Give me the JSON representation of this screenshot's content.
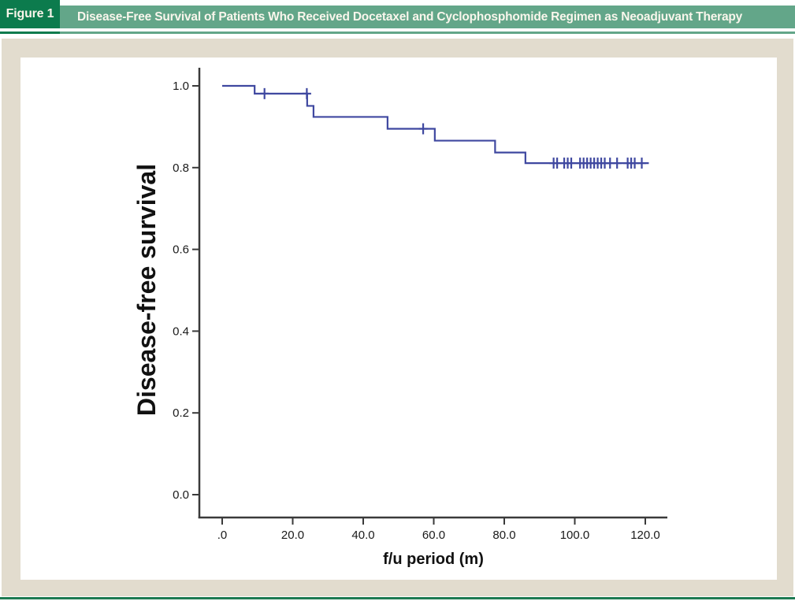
{
  "figure": {
    "label": "Figure 1",
    "title": "Disease-Free Survival of Patients Who Received Docetaxel and Cyclophosphomide Regimen as Neoadjuvant Therapy"
  },
  "colors": {
    "header_dark_green": "#0c7b4d",
    "header_sage_green": "#63a689",
    "panel_beige": "#e2dcce",
    "curve_blue": "#3f48a0",
    "axis_gray": "#3a3a3a",
    "bottom_rule_green": "#1d7a52"
  },
  "chart_data": {
    "type": "line",
    "subtype": "kaplan-meier-step",
    "title": "Disease-Free Survival of Patients Who Received Docetaxel and Cyclophosphomide Regimen as Neoadjuvant Therapy",
    "xlabel": "f/u period (m)",
    "ylabel": "Disease-free survival",
    "xlim": [
      0,
      125
    ],
    "ylim": [
      0,
      1.0
    ],
    "grid": false,
    "legend_position": "none",
    "x_ticks": {
      "values": [
        0,
        20,
        40,
        60,
        80,
        100,
        120
      ],
      "labels": [
        ".0",
        "20.0",
        "40.0",
        "60.0",
        "80.0",
        "100.0",
        "120.0"
      ]
    },
    "y_ticks": {
      "values": [
        0.0,
        0.2,
        0.4,
        0.6,
        0.8,
        1.0
      ],
      "labels": [
        "0.0",
        "0.2",
        "0.4",
        "0.6",
        "0.8",
        "1.0"
      ]
    },
    "series": [
      {
        "name": "Disease-free survival",
        "color": "#3f48a0",
        "start": {
          "t": 0,
          "s": 1.0
        },
        "drops": [
          [
            9.2,
            0.981
          ],
          [
            24.1,
            0.951
          ],
          [
            25.9,
            0.924
          ],
          [
            46.9,
            0.895
          ],
          [
            60.3,
            0.866
          ],
          [
            77.4,
            0.837
          ],
          [
            86.0,
            0.811
          ]
        ],
        "end_t": 121,
        "censors": [
          [
            12,
            0.981
          ],
          [
            24,
            0.981
          ],
          [
            57,
            0.895
          ],
          [
            94,
            0.811
          ],
          [
            95,
            0.811
          ],
          [
            97,
            0.811
          ],
          [
            98,
            0.811
          ],
          [
            99,
            0.811
          ],
          [
            101.5,
            0.811
          ],
          [
            102.5,
            0.811
          ],
          [
            103.5,
            0.811
          ],
          [
            104.5,
            0.811
          ],
          [
            105.5,
            0.811
          ],
          [
            106.5,
            0.811
          ],
          [
            107.5,
            0.811
          ],
          [
            108.5,
            0.811
          ],
          [
            110,
            0.811
          ],
          [
            112,
            0.811
          ],
          [
            115,
            0.811
          ],
          [
            116,
            0.811
          ],
          [
            117,
            0.811
          ],
          [
            119,
            0.811
          ]
        ]
      }
    ]
  }
}
